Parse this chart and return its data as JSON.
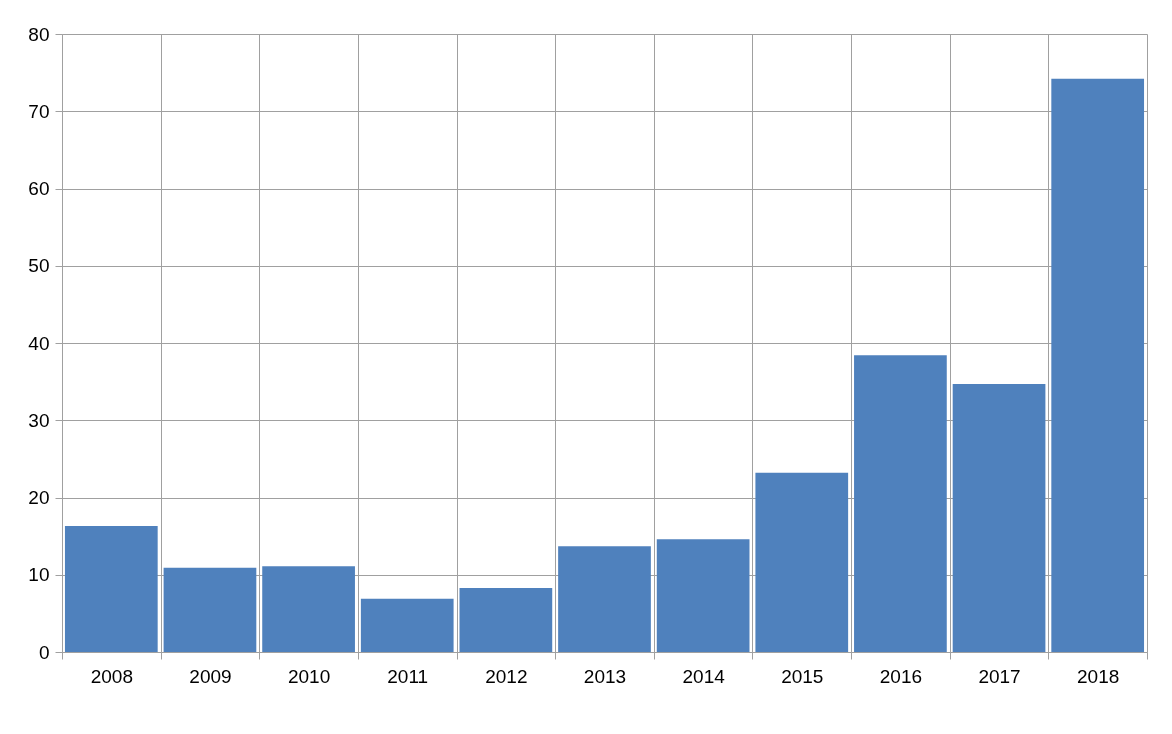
{
  "chart_data": {
    "type": "bar",
    "categories": [
      "2008",
      "2009",
      "2010",
      "2011",
      "2012",
      "2013",
      "2014",
      "2015",
      "2016",
      "2017",
      "2018"
    ],
    "values": [
      16.3,
      10.9,
      11.1,
      6.9,
      8.3,
      13.7,
      14.6,
      23.2,
      38.4,
      34.7,
      74.2
    ],
    "color": "#4f81bd",
    "ylim": [
      0,
      80
    ],
    "yticks": [
      0,
      10,
      20,
      30,
      40,
      50,
      60,
      70,
      80
    ],
    "grid": true
  }
}
